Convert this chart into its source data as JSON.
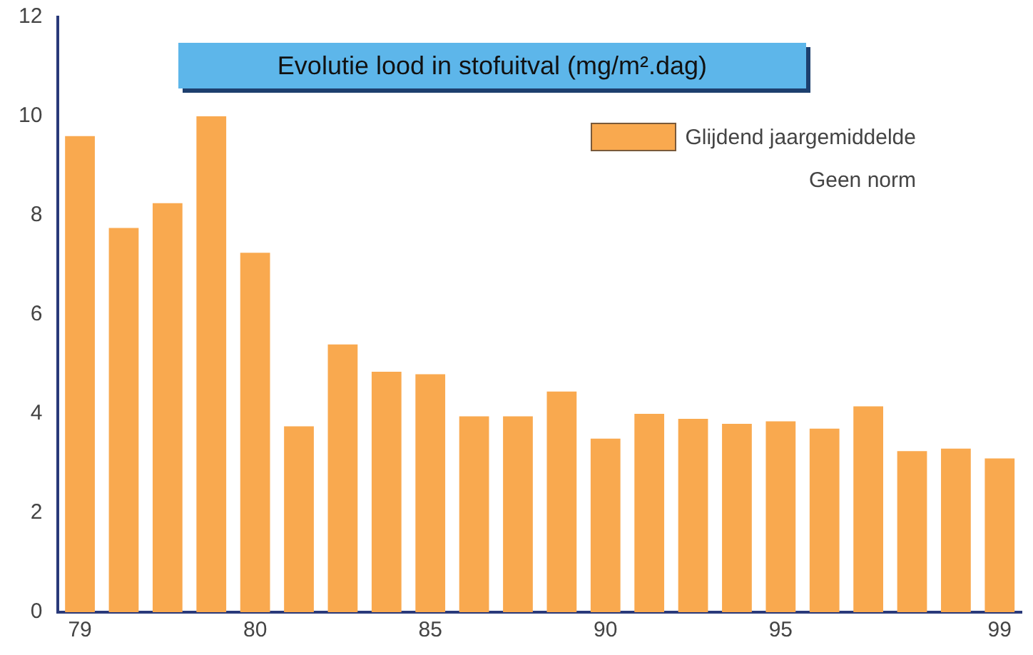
{
  "chart_data": {
    "type": "bar",
    "title": "Evolutie lood in stofuitval (mg/m².dag)",
    "categories": [
      "79",
      null,
      null,
      null,
      "80",
      null,
      null,
      null,
      "85",
      null,
      null,
      null,
      "90",
      null,
      null,
      null,
      "95",
      null,
      null,
      null,
      null,
      "99"
    ],
    "series": [
      {
        "name": "Glijdend jaargemiddelde",
        "color": "#f9a94f",
        "values": [
          9.6,
          7.75,
          8.25,
          10.0,
          7.25,
          3.75,
          5.4,
          4.85,
          4.8,
          3.95,
          3.95,
          4.45,
          3.5,
          4.0,
          3.9,
          3.8,
          3.85,
          3.7,
          4.15,
          3.25,
          3.3,
          3.1
        ]
      }
    ],
    "ylim": [
      0,
      12
    ],
    "yticks": [
      0,
      2,
      4,
      6,
      8,
      10,
      12
    ],
    "grid": false,
    "legend": "top right",
    "annotations": [
      "Geen norm"
    ]
  }
}
